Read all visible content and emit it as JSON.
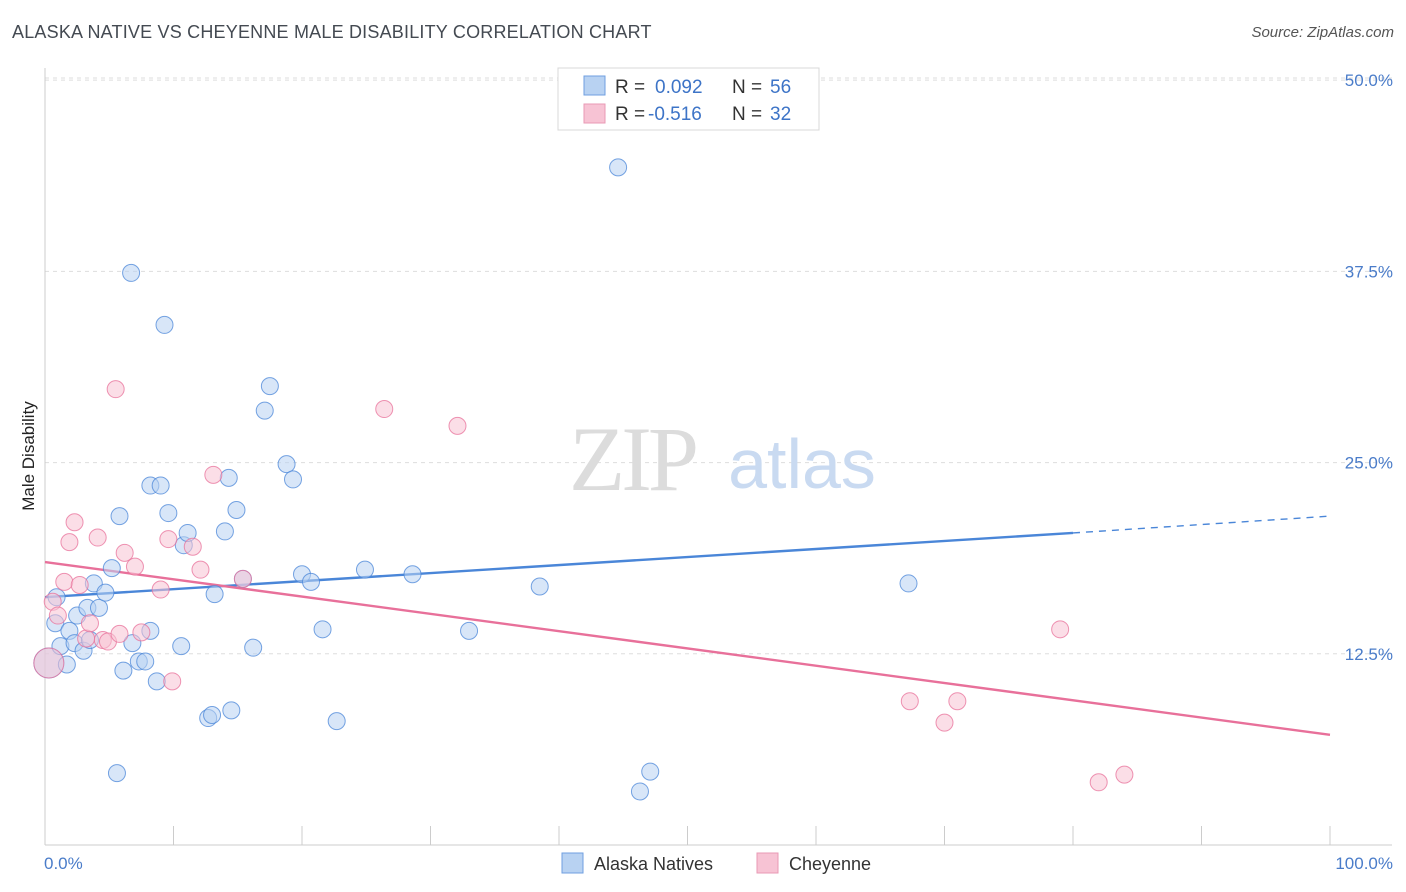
{
  "title": "ALASKA NATIVE VS CHEYENNE MALE DISABILITY CORRELATION CHART",
  "source": "Source: ZipAtlas.com",
  "watermark": {
    "zip": "ZIP",
    "atlas": "atlas"
  },
  "chart_data": {
    "type": "scatter",
    "title": "ALASKA NATIVE VS CHEYENNE MALE DISABILITY CORRELATION CHART",
    "xlabel": "",
    "ylabel": "Male Disability",
    "xlim": [
      0,
      100
    ],
    "ylim": [
      0,
      52.5
    ],
    "y_ticks": [
      12.5,
      25.0,
      37.5,
      50.0
    ],
    "y_tick_labels": [
      "12.5%",
      "25.0%",
      "37.5%",
      "50.0%"
    ],
    "x_tick_labels": {
      "min": "0.0%",
      "max": "100.0%"
    },
    "colors": {
      "alaska": "#4a86d8",
      "cheyenne": "#e8709a",
      "alaska_fill": "#b8d2f2",
      "cheyenne_fill": "#f7c3d4",
      "axis_text": "#4a7cc9"
    },
    "legend": [
      {
        "series": "alaska",
        "r_label": "R =",
        "r_value": "0.092",
        "n_label": "N =",
        "n_value": "56"
      },
      {
        "series": "cheyenne",
        "r_label": "R =",
        "r_value": "-0.516",
        "n_label": "N =",
        "n_value": "32"
      }
    ],
    "series": [
      {
        "name": "Alaska Natives",
        "key": "alaska",
        "trend": {
          "x0": 0,
          "y0": 16.2,
          "x1": 80,
          "y1": 20.4,
          "dash_to": 100,
          "dash_y": 21.5
        },
        "points": [
          [
            0.3,
            11.9
          ],
          [
            0.8,
            14.5
          ],
          [
            0.9,
            16.2
          ],
          [
            1.2,
            13.0
          ],
          [
            1.7,
            11.8
          ],
          [
            1.9,
            14.0
          ],
          [
            2.3,
            13.2
          ],
          [
            2.5,
            15.0
          ],
          [
            3.0,
            12.7
          ],
          [
            3.3,
            15.5
          ],
          [
            3.5,
            13.4
          ],
          [
            3.8,
            17.1
          ],
          [
            4.2,
            15.5
          ],
          [
            4.7,
            16.5
          ],
          [
            5.2,
            18.1
          ],
          [
            5.6,
            4.7
          ],
          [
            5.8,
            21.5
          ],
          [
            6.1,
            11.4
          ],
          [
            6.7,
            37.4
          ],
          [
            6.8,
            13.2
          ],
          [
            7.3,
            12.0
          ],
          [
            7.8,
            12.0
          ],
          [
            8.2,
            14.0
          ],
          [
            8.2,
            23.5
          ],
          [
            8.7,
            10.7
          ],
          [
            9.0,
            23.5
          ],
          [
            9.3,
            34.0
          ],
          [
            9.6,
            21.7
          ],
          [
            10.6,
            13.0
          ],
          [
            10.8,
            19.6
          ],
          [
            11.1,
            20.4
          ],
          [
            12.7,
            8.3
          ],
          [
            13.0,
            8.5
          ],
          [
            13.2,
            16.4
          ],
          [
            14.0,
            20.5
          ],
          [
            14.3,
            24.0
          ],
          [
            14.5,
            8.8
          ],
          [
            14.9,
            21.9
          ],
          [
            15.4,
            17.4
          ],
          [
            16.2,
            12.9
          ],
          [
            17.1,
            28.4
          ],
          [
            17.5,
            30.0
          ],
          [
            18.8,
            24.9
          ],
          [
            19.3,
            23.9
          ],
          [
            20.0,
            17.7
          ],
          [
            20.7,
            17.2
          ],
          [
            21.6,
            14.1
          ],
          [
            22.7,
            8.1
          ],
          [
            24.9,
            18.0
          ],
          [
            28.6,
            17.7
          ],
          [
            33.0,
            14.0
          ],
          [
            38.5,
            16.9
          ],
          [
            44.6,
            44.3
          ],
          [
            46.3,
            3.5
          ],
          [
            47.1,
            4.8
          ],
          [
            67.2,
            17.1
          ]
        ]
      },
      {
        "name": "Cheyenne",
        "key": "cheyenne",
        "trend": {
          "x0": 0,
          "y0": 18.5,
          "x1": 100,
          "y1": 7.2
        },
        "points": [
          [
            0.3,
            11.9
          ],
          [
            0.6,
            15.9
          ],
          [
            1.0,
            15.0
          ],
          [
            1.5,
            17.2
          ],
          [
            1.9,
            19.8
          ],
          [
            2.3,
            21.1
          ],
          [
            2.7,
            17.0
          ],
          [
            3.2,
            13.5
          ],
          [
            3.5,
            14.5
          ],
          [
            4.1,
            20.1
          ],
          [
            4.5,
            13.4
          ],
          [
            4.9,
            13.3
          ],
          [
            5.5,
            29.8
          ],
          [
            5.8,
            13.8
          ],
          [
            6.2,
            19.1
          ],
          [
            7.0,
            18.2
          ],
          [
            7.5,
            13.9
          ],
          [
            9.0,
            16.7
          ],
          [
            9.6,
            20.0
          ],
          [
            9.9,
            10.7
          ],
          [
            11.5,
            19.5
          ],
          [
            12.1,
            18.0
          ],
          [
            13.1,
            24.2
          ],
          [
            15.4,
            17.4
          ],
          [
            26.4,
            28.5
          ],
          [
            32.1,
            27.4
          ],
          [
            67.3,
            9.4
          ],
          [
            70.0,
            8.0
          ],
          [
            71.0,
            9.4
          ],
          [
            79.0,
            14.1
          ],
          [
            82.0,
            4.1
          ],
          [
            84.0,
            4.6
          ]
        ]
      }
    ],
    "bottom_legend": [
      "Alaska Natives",
      "Cheyenne"
    ]
  }
}
